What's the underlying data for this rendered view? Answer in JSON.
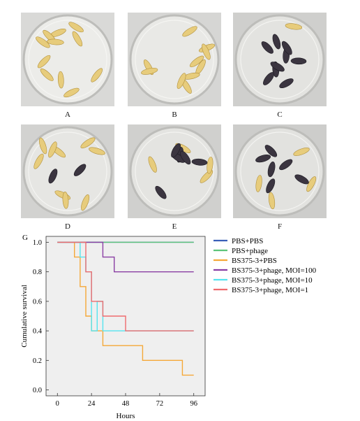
{
  "panels": [
    {
      "label": "A",
      "bg": "#d9d9d7",
      "dish": "#ecece9"
    },
    {
      "label": "B",
      "bg": "#d6d6d4",
      "dish": "#e9e9e6"
    },
    {
      "label": "C",
      "bg": "#cfcfcd",
      "dish": "#e3e3e0"
    },
    {
      "label": "D",
      "bg": "#d2d2d0",
      "dish": "#e6e6e3"
    },
    {
      "label": "E",
      "bg": "#d0d0ce",
      "dish": "#e4e4e1"
    },
    {
      "label": "F",
      "bg": "#cdcdcb",
      "dish": "#e2e2df"
    }
  ],
  "chart_data": {
    "type": "line",
    "panel_label": "G",
    "xlabel": "Hours",
    "ylabel": "Cumulative survival",
    "xlim": [
      -8,
      104
    ],
    "ylim": [
      -0.04,
      1.04
    ],
    "xticks": [
      0,
      24,
      48,
      72,
      96
    ],
    "yticks": [
      0.0,
      0.2,
      0.4,
      0.6,
      0.8,
      1.0
    ],
    "ytick_labels": [
      "0.0",
      "0.2",
      "0.4",
      "0.6",
      "0.8",
      "1.0"
    ],
    "step": true,
    "legend_position": "right",
    "plot_bg": "#efefef",
    "series": [
      {
        "name": "PBS+PBS",
        "color": "#3a5fb8",
        "x": [
          0,
          96
        ],
        "y": [
          1.0,
          1.0
        ]
      },
      {
        "name": "PBS+phage",
        "color": "#5cc47a",
        "x": [
          0,
          96
        ],
        "y": [
          1.0,
          1.0
        ]
      },
      {
        "name": "BS375-3+PBS",
        "color": "#f5a838",
        "x": [
          0,
          12,
          16,
          20,
          24,
          32,
          60,
          88,
          96
        ],
        "y": [
          1.0,
          0.9,
          0.7,
          0.5,
          0.4,
          0.3,
          0.2,
          0.1,
          0.1
        ]
      },
      {
        "name": "BS375-3+phage, MOI=100",
        "color": "#8a3ea4",
        "x": [
          0,
          32,
          40,
          96
        ],
        "y": [
          1.0,
          0.9,
          0.8,
          0.8
        ]
      },
      {
        "name": "BS375-3+phage, MOI=10",
        "color": "#55e4ef",
        "x": [
          0,
          16,
          20,
          24,
          28,
          32,
          48,
          96
        ],
        "y": [
          1.0,
          0.9,
          0.8,
          0.4,
          0.6,
          0.4,
          0.4,
          0.4
        ]
      },
      {
        "name": "BS375-3+phage, MOI=1",
        "color": "#ef6b6e",
        "x": [
          0,
          20,
          24,
          32,
          48,
          96
        ],
        "y": [
          1.0,
          0.8,
          0.6,
          0.5,
          0.4,
          0.4
        ]
      }
    ]
  }
}
